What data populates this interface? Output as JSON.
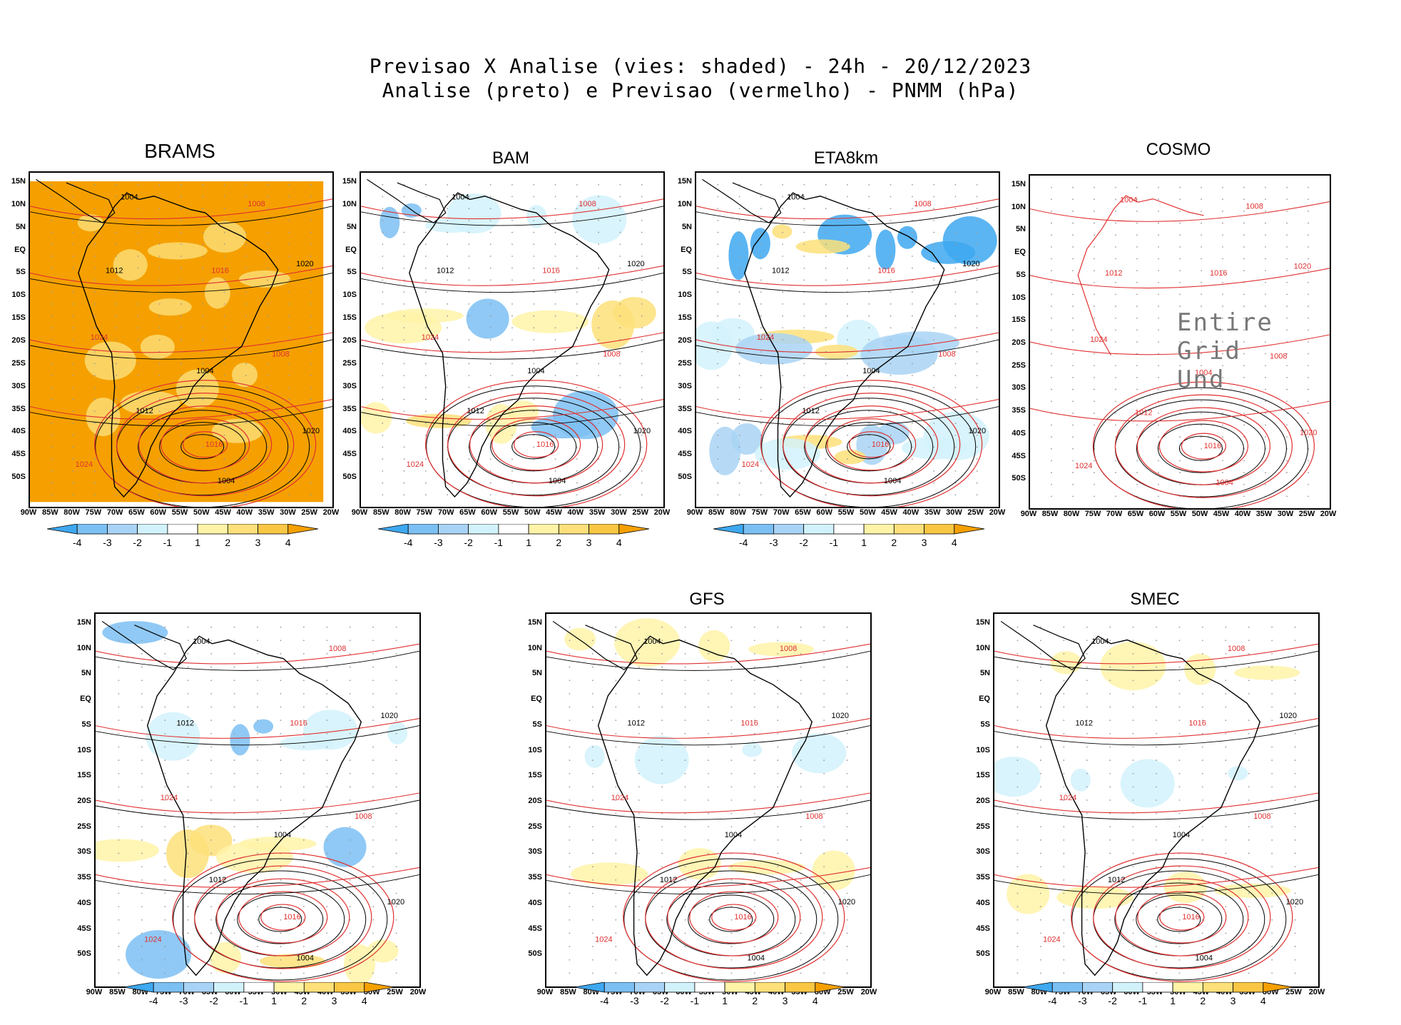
{
  "header": {
    "title_line1": "Previsao X Analise (vies: shaded) - 24h - 20/12/2023",
    "title_line2": "Analise (preto) e Previsao (vermelho) - PNMM (hPa)"
  },
  "axes": {
    "lat_labels": [
      "15N",
      "10N",
      "5N",
      "EQ",
      "5S",
      "10S",
      "15S",
      "20S",
      "25S",
      "30S",
      "35S",
      "40S",
      "45S",
      "50S"
    ],
    "lon_labels": [
      "90W",
      "85W",
      "80W",
      "75W",
      "70W",
      "65W",
      "60W",
      "55W",
      "50W",
      "45W",
      "40W",
      "35W",
      "30W",
      "25W",
      "20W"
    ]
  },
  "colorbar": {
    "labels": [
      "-4",
      "-3",
      "-2",
      "-1",
      "1",
      "2",
      "3",
      "4"
    ],
    "colors": [
      "#3ea8f0",
      "#7cc0f3",
      "#a9d3f5",
      "#d2f2fb",
      "#ffffff",
      "#fff3a8",
      "#fde07a",
      "#f9c744",
      "#f5a000"
    ]
  },
  "panels": [
    {
      "id": "brams",
      "title": "BRAMS",
      "style": "orange"
    },
    {
      "id": "bam",
      "title": "BAM",
      "style": "mixed"
    },
    {
      "id": "eta8km",
      "title": "ETA8km",
      "style": "blue"
    },
    {
      "id": "cosmo",
      "title": "COSMO",
      "style": "none",
      "overlay": "Entire Grid Und"
    },
    {
      "id": "unnamed",
      "title": "",
      "style": "mixed"
    },
    {
      "id": "gfs",
      "title": "GFS",
      "style": "light"
    },
    {
      "id": "smec",
      "title": "SMEC",
      "style": "light"
    }
  ],
  "contour_labels": [
    "1004",
    "1008",
    "1012",
    "1016",
    "1020",
    "1024"
  ],
  "colors": {
    "analysis": "#000000",
    "forecast": "#e03030",
    "grid_dots": "#9a9a9a"
  }
}
